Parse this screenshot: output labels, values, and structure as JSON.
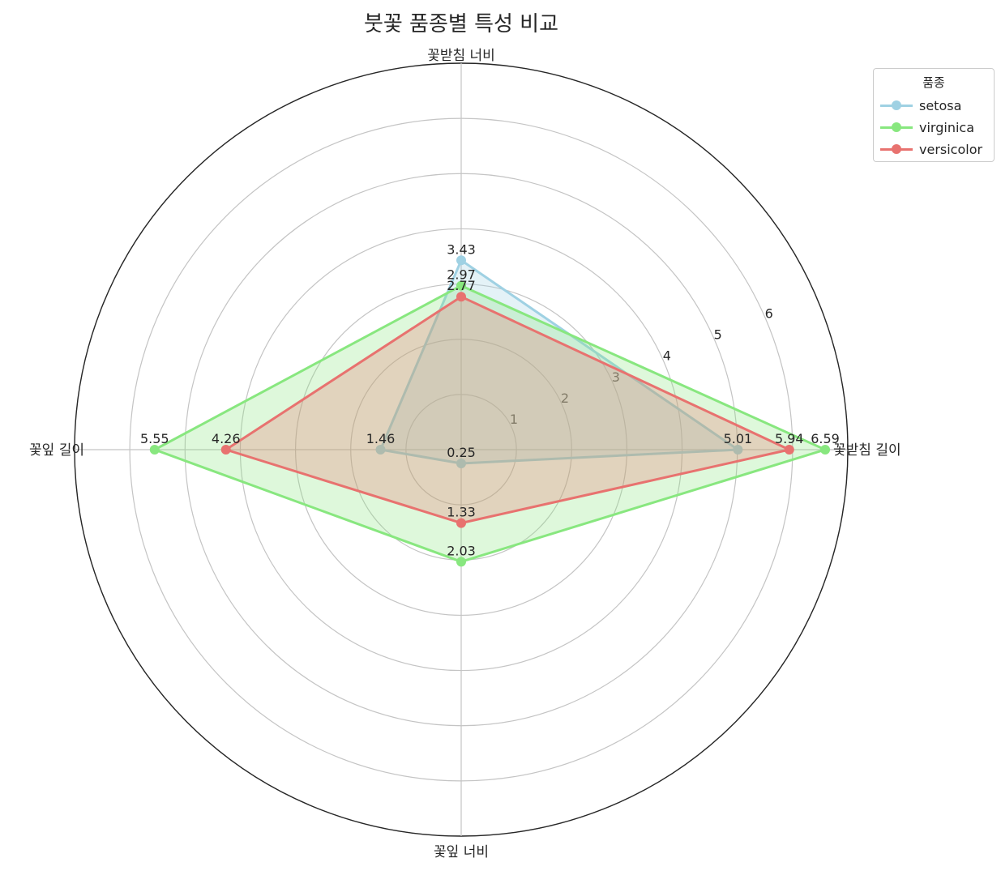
{
  "chart_data": {
    "type": "radar",
    "title": "붓꽃 품종별 특성 비교",
    "axes": [
      "꽃받침 길이",
      "꽃받침 너비",
      "꽃잎 길이",
      "꽃잎 너비"
    ],
    "radial_ticks": [
      "1",
      "2",
      "3",
      "4",
      "5",
      "6"
    ],
    "rlim": [
      0,
      7
    ],
    "grid": true,
    "legend": {
      "title": "품종",
      "placement": "top-right"
    },
    "series": [
      {
        "name": "setosa",
        "color": "#9fd1e3",
        "values": [
          5.01,
          3.43,
          1.46,
          0.25
        ],
        "labels": [
          "5.01",
          "3.43",
          "1.46",
          "0.25"
        ]
      },
      {
        "name": "virginica",
        "color": "#88e77f",
        "values": [
          6.59,
          2.97,
          5.55,
          2.03
        ],
        "labels": [
          "6.59",
          "2.97",
          "5.55",
          "2.03"
        ]
      },
      {
        "name": "versicolor",
        "color": "#e8726f",
        "values": [
          5.94,
          2.77,
          4.26,
          1.33
        ],
        "labels": [
          "5.94",
          "2.77",
          "4.26",
          "1.33"
        ]
      }
    ]
  }
}
